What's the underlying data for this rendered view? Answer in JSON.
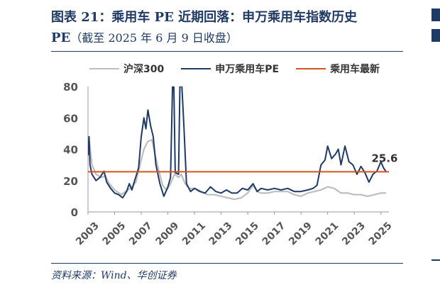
{
  "header": {
    "title_line1": "图表 21：乘用车 PE 近期回落：申万乘用车指数历史",
    "title_line2_main": "PE",
    "title_line2_sub": "（截至 2025 年 6 月 9 日收盘）"
  },
  "source": "资料来源：Wind、华创证券",
  "colors": {
    "hs300": "#bdbdbd",
    "sw_pe": "#1f3a64",
    "latest": "#d9531e",
    "axis_text": "#555555"
  },
  "chart_data": {
    "type": "line",
    "title": "",
    "xlabel": "",
    "ylabel": "",
    "ylim": [
      0,
      80
    ],
    "xlim": [
      2003.0,
      2025.6
    ],
    "yticks": [
      0,
      20,
      40,
      60,
      80
    ],
    "xticks": [
      "2003",
      "2005",
      "2007",
      "2009",
      "2011",
      "2013",
      "2015",
      "2017",
      "2019",
      "2021",
      "2023",
      "2025"
    ],
    "grid": false,
    "legend_position": "top",
    "series": [
      {
        "name": "沪深300",
        "points": [
          [
            2003.0,
            38
          ],
          [
            2003.1,
            45
          ],
          [
            2003.3,
            30
          ],
          [
            2003.6,
            24
          ],
          [
            2004.0,
            22
          ],
          [
            2004.3,
            23
          ],
          [
            2004.6,
            18
          ],
          [
            2005.0,
            14
          ],
          [
            2005.5,
            11
          ],
          [
            2005.8,
            13
          ],
          [
            2006.2,
            15
          ],
          [
            2006.6,
            19
          ],
          [
            2006.9,
            30
          ],
          [
            2007.2,
            40
          ],
          [
            2007.5,
            45
          ],
          [
            2007.8,
            46
          ],
          [
            2008.0,
            38
          ],
          [
            2008.3,
            27
          ],
          [
            2008.6,
            17
          ],
          [
            2008.9,
            14
          ],
          [
            2009.2,
            18
          ],
          [
            2009.5,
            24
          ],
          [
            2009.8,
            22
          ],
          [
            2010.0,
            24
          ],
          [
            2010.3,
            18
          ],
          [
            2010.6,
            15
          ],
          [
            2011.0,
            15
          ],
          [
            2011.3,
            14
          ],
          [
            2011.7,
            12
          ],
          [
            2012.0,
            11
          ],
          [
            2012.5,
            11
          ],
          [
            2013.0,
            10
          ],
          [
            2013.5,
            9
          ],
          [
            2014.0,
            8
          ],
          [
            2014.5,
            9
          ],
          [
            2015.0,
            12
          ],
          [
            2015.4,
            17
          ],
          [
            2015.7,
            13
          ],
          [
            2016.0,
            12
          ],
          [
            2016.5,
            12
          ],
          [
            2017.0,
            13
          ],
          [
            2017.5,
            13
          ],
          [
            2018.0,
            13
          ],
          [
            2018.5,
            11
          ],
          [
            2019.0,
            10
          ],
          [
            2019.5,
            12
          ],
          [
            2020.0,
            13
          ],
          [
            2020.5,
            14
          ],
          [
            2021.0,
            16
          ],
          [
            2021.5,
            15
          ],
          [
            2022.0,
            12
          ],
          [
            2022.5,
            12
          ],
          [
            2023.0,
            11
          ],
          [
            2023.5,
            11
          ],
          [
            2024.0,
            10
          ],
          [
            2024.5,
            11
          ],
          [
            2025.0,
            12
          ],
          [
            2025.4,
            12
          ]
        ]
      },
      {
        "name": "申万乘用车PE",
        "points": [
          [
            2003.0,
            36
          ],
          [
            2003.08,
            48
          ],
          [
            2003.15,
            30
          ],
          [
            2003.3,
            24
          ],
          [
            2003.6,
            20
          ],
          [
            2003.9,
            22
          ],
          [
            2004.2,
            26
          ],
          [
            2004.4,
            19
          ],
          [
            2004.7,
            15
          ],
          [
            2005.0,
            12
          ],
          [
            2005.3,
            11
          ],
          [
            2005.6,
            9
          ],
          [
            2005.9,
            13
          ],
          [
            2006.1,
            18
          ],
          [
            2006.3,
            14
          ],
          [
            2006.5,
            20
          ],
          [
            2006.8,
            28
          ],
          [
            2007.0,
            48
          ],
          [
            2007.2,
            60
          ],
          [
            2007.35,
            53
          ],
          [
            2007.5,
            65
          ],
          [
            2007.7,
            55
          ],
          [
            2007.9,
            48
          ],
          [
            2008.1,
            30
          ],
          [
            2008.4,
            18
          ],
          [
            2008.7,
            10
          ],
          [
            2009.0,
            16
          ],
          [
            2009.2,
            22
          ],
          [
            2009.35,
            80
          ],
          [
            2009.45,
            80
          ],
          [
            2009.55,
            25
          ],
          [
            2009.8,
            24
          ],
          [
            2009.9,
            80
          ],
          [
            2010.05,
            80
          ],
          [
            2010.2,
            55
          ],
          [
            2010.4,
            18
          ],
          [
            2010.7,
            13
          ],
          [
            2011.0,
            15
          ],
          [
            2011.4,
            13
          ],
          [
            2011.8,
            12
          ],
          [
            2012.2,
            16
          ],
          [
            2012.6,
            13
          ],
          [
            2013.0,
            12
          ],
          [
            2013.4,
            14
          ],
          [
            2013.8,
            12
          ],
          [
            2014.2,
            12
          ],
          [
            2014.6,
            15
          ],
          [
            2015.0,
            14
          ],
          [
            2015.4,
            18
          ],
          [
            2015.7,
            13
          ],
          [
            2016.0,
            15
          ],
          [
            2016.5,
            14
          ],
          [
            2017.0,
            15
          ],
          [
            2017.5,
            14
          ],
          [
            2018.0,
            15
          ],
          [
            2018.5,
            13
          ],
          [
            2019.0,
            13
          ],
          [
            2019.5,
            14
          ],
          [
            2019.9,
            15
          ],
          [
            2020.2,
            17
          ],
          [
            2020.5,
            30
          ],
          [
            2020.8,
            33
          ],
          [
            2021.0,
            42
          ],
          [
            2021.3,
            34
          ],
          [
            2021.6,
            37
          ],
          [
            2021.8,
            40
          ],
          [
            2022.0,
            30
          ],
          [
            2022.3,
            42
          ],
          [
            2022.6,
            32
          ],
          [
            2022.9,
            30
          ],
          [
            2023.2,
            24
          ],
          [
            2023.5,
            29
          ],
          [
            2023.8,
            25
          ],
          [
            2024.1,
            19
          ],
          [
            2024.4,
            24
          ],
          [
            2024.7,
            26
          ],
          [
            2025.0,
            32
          ],
          [
            2025.2,
            28
          ],
          [
            2025.4,
            25.6
          ]
        ]
      },
      {
        "name": "乘用车最新",
        "constant": 25.6
      }
    ],
    "annotations": [
      {
        "text": "25.6",
        "x": 2025.2,
        "y": 25.6
      }
    ]
  }
}
